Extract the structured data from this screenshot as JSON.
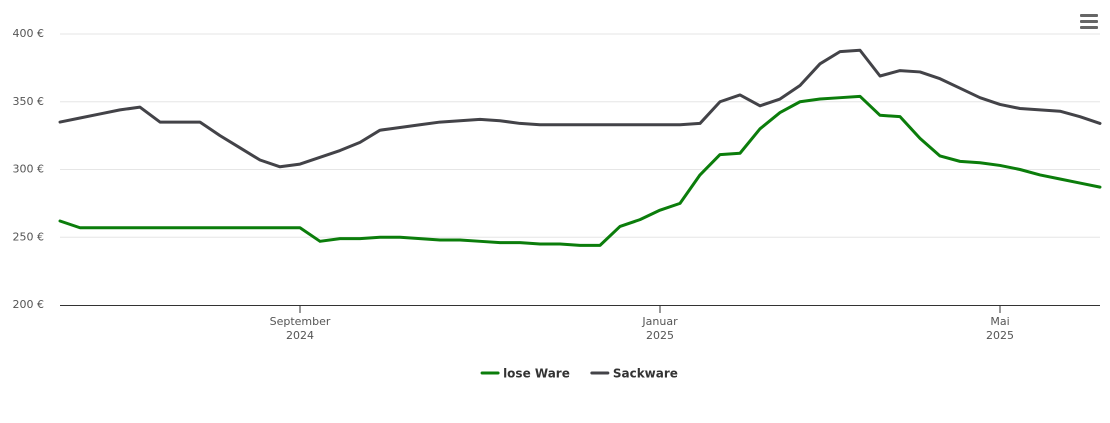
{
  "chart_data": {
    "type": "line",
    "categories": [
      null,
      null,
      null,
      null,
      null,
      null,
      null,
      null,
      null,
      null,
      null,
      null,
      "September 2024",
      null,
      null,
      null,
      null,
      null,
      null,
      null,
      null,
      null,
      null,
      null,
      null,
      null,
      null,
      null,
      null,
      null,
      "Januar 2025",
      null,
      null,
      null,
      null,
      null,
      null,
      null,
      null,
      null,
      null,
      null,
      null,
      null,
      null,
      null,
      null,
      "Mai 2025",
      null,
      null,
      null,
      null,
      null
    ],
    "series": [
      {
        "name": "lose Ware",
        "color": "#0b7d0b",
        "values": [
          262,
          257,
          257,
          257,
          257,
          257,
          257,
          257,
          257,
          257,
          257,
          257,
          257,
          247,
          249,
          249,
          250,
          250,
          249,
          248,
          248,
          247,
          246,
          246,
          245,
          245,
          244,
          244,
          258,
          263,
          270,
          275,
          296,
          311,
          312,
          330,
          342,
          350,
          352,
          353,
          354,
          340,
          339,
          323,
          310,
          306,
          305,
          303,
          300,
          296,
          293,
          290,
          287
        ]
      },
      {
        "name": "Sackware",
        "color": "#434348",
        "values": [
          335,
          338,
          341,
          344,
          346,
          335,
          335,
          335,
          325,
          316,
          307,
          302,
          304,
          309,
          314,
          320,
          329,
          331,
          333,
          335,
          336,
          337,
          336,
          334,
          333,
          333,
          333,
          333,
          333,
          333,
          333,
          333,
          334,
          350,
          355,
          347,
          352,
          362,
          378,
          387,
          388,
          369,
          373,
          372,
          367,
          360,
          353,
          348,
          345,
          344,
          343,
          339,
          334
        ]
      }
    ],
    "ylim": [
      200,
      400
    ],
    "yticks": [
      {
        "value": 200,
        "label": "200 €"
      },
      {
        "value": 250,
        "label": "250 €"
      },
      {
        "value": 300,
        "label": "300 €"
      },
      {
        "value": 350,
        "label": "350 €"
      },
      {
        "value": 400,
        "label": "400 €"
      }
    ],
    "grid": true,
    "legend": "bottom"
  }
}
